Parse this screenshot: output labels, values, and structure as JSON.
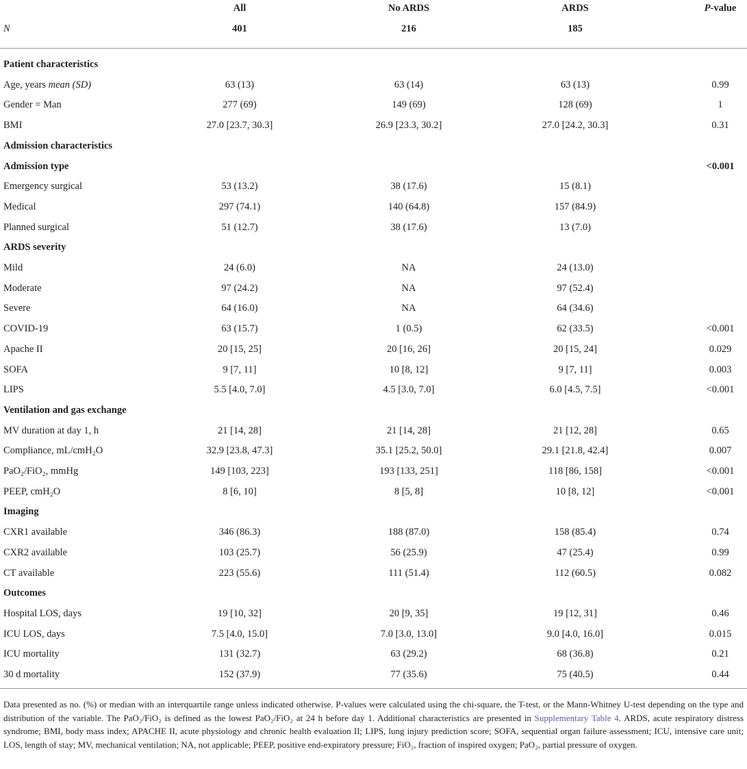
{
  "table": {
    "header": {
      "columns": [
        "All",
        "No ARDS",
        "ARDS"
      ],
      "p_italic": "P",
      "p_rest": "-value",
      "n_label": "N",
      "n_values": [
        401,
        216,
        185
      ]
    },
    "rows": [
      {
        "label": "Patient characteristics",
        "bold": true,
        "values": [
          null,
          null,
          null,
          null
        ]
      },
      {
        "label": "Age, years",
        "label_em": "mean (SD)",
        "values": [
          "63 (13)",
          "63 (14)",
          "63 (13)",
          "0.99"
        ]
      },
      {
        "label": "Gender = Man",
        "values": [
          "277 (69)",
          "149 (69)",
          "128 (69)",
          "1"
        ]
      },
      {
        "label": "BMI",
        "values": [
          "27.0 [23.7, 30.3]",
          "26.9 [23.3, 30.2]",
          "27.0 [24.2, 30.3]",
          "0.31"
        ]
      },
      {
        "label": "Admission characteristics",
        "bold": true,
        "values": [
          null,
          null,
          null,
          null
        ]
      },
      {
        "label": "Admission type",
        "bold": true,
        "values": [
          null,
          null,
          null,
          "<0.001"
        ]
      },
      {
        "label": "Emergency surgical",
        "values": [
          "53 (13.2)",
          "38 (17.6)",
          "15 (8.1)",
          null
        ]
      },
      {
        "label": "Medical",
        "values": [
          "297 (74.1)",
          "140 (64.8)",
          "157 (84.9)",
          null
        ]
      },
      {
        "label": "Planned surgical",
        "values": [
          "51 (12.7)",
          "38 (17.6)",
          "13 (7.0)",
          null
        ]
      },
      {
        "label": "ARDS severity",
        "bold": true,
        "values": [
          null,
          null,
          null,
          null
        ]
      },
      {
        "label": "Mild",
        "values": [
          "24 (6.0)",
          "NA",
          "24 (13.0)",
          null
        ]
      },
      {
        "label": "Moderate",
        "values": [
          "97 (24.2)",
          "NA",
          "97 (52.4)",
          null
        ]
      },
      {
        "label": "Severe",
        "values": [
          "64 (16.0)",
          "NA",
          "64 (34.6)",
          null
        ]
      },
      {
        "label": "COVID-19",
        "values": [
          "63 (15.7)",
          "1 (0.5)",
          "62 (33.5)",
          "<0.001"
        ]
      },
      {
        "label": "Apache II",
        "values": [
          "20 [15, 25]",
          "20 [16, 26]",
          "20 [15, 24]",
          "0.029"
        ]
      },
      {
        "label": "SOFA",
        "values": [
          "9 [7, 11]",
          "10 [8, 12]",
          "9 [7, 11]",
          "0.003"
        ]
      },
      {
        "label": "LIPS",
        "values": [
          "5.5 [4.0, 7.0]",
          "4.5 [3.0, 7.0]",
          "6.0 [4.5, 7.5]",
          "<0.001"
        ]
      },
      {
        "label": "Ventilation and gas exchange",
        "bold": true,
        "values": [
          null,
          null,
          null,
          null
        ]
      },
      {
        "label": "MV duration at day 1, h",
        "values": [
          "21 [14, 28]",
          "21 [14, 28]",
          "21 [12, 28]",
          "0.65"
        ]
      },
      {
        "label": "Compliance, mL/cmH₂O",
        "values": [
          "32.9 [23.8, 47.3]",
          "35.1 [25.2, 50.0]",
          "29.1 [21.8, 42.4]",
          "0.007"
        ]
      },
      {
        "label": "PaO₂/FiO₂, mmHg",
        "values": [
          "149 [103, 223]",
          "193 [133, 251]",
          "118 [86, 158]",
          "<0.001"
        ]
      },
      {
        "label": "PEEP, cmH₂O",
        "values": [
          "8 [6, 10]",
          "8 [5, 8]",
          "10 [8, 12]",
          "<0.001"
        ]
      },
      {
        "label": "Imaging",
        "bold": true,
        "values": [
          null,
          null,
          null,
          null
        ]
      },
      {
        "label": "CXR1 available",
        "values": [
          "346 (86.3)",
          "188 (87.0)",
          "158 (85.4)",
          "0.74"
        ]
      },
      {
        "label": "CXR2 available",
        "values": [
          "103 (25.7)",
          "56 (25.9)",
          "47 (25.4)",
          "0.99"
        ]
      },
      {
        "label": "CT available",
        "values": [
          "223 (55.6)",
          "111 (51.4)",
          "112 (60.5)",
          "0.082"
        ]
      },
      {
        "label": "Outcomes",
        "bold": true,
        "values": [
          null,
          null,
          null,
          null
        ]
      },
      {
        "label": "Hospital LOS, days",
        "values": [
          "19 [10, 32]",
          "20 [9, 35]",
          "19 [12, 31]",
          "0.46"
        ]
      },
      {
        "label": "ICU LOS, days",
        "values": [
          "7.5 [4.0, 15.0]",
          "7.0 [3.0, 13.0]",
          "9.0 [4.0, 16.0]",
          "0.015"
        ]
      },
      {
        "label": "ICU mortality",
        "values": [
          "131 (32.7)",
          "63 (29.2)",
          "68 (36.8)",
          "0.21"
        ]
      },
      {
        "label": "30 d mortality",
        "values": [
          "152 (37.9)",
          "77 (35.6)",
          "75 (40.5)",
          "0.44"
        ]
      }
    ],
    "footnote": {
      "before": "Data presented as no. (%) or median with an interquartile range unless indicated otherwise. P-values were calculated using the chi-square, the T-test, or the Mann-Whitney U-test depending on the type and distribution of the variable. The PaO₂/FiO₂ is defined as the lowest PaO₂/FiO₂ at 24 h before day 1. Additional characteristics are presented in",
      "link": "Supplementary Table 4",
      "after": ". ARDS, acute respiratory distress syndrome; BMI, body mass index; APACHE II, acute physiology and chronic health evaluation II; LIPS, lung injury prediction score; SOFA, sequential organ failure assessment; ICU, intensive care unit; LOS, length of stay; MV, mechanical ventilation; NA, not applicable; PEEP, positive end-expiratory pressure; FiO₂, fraction of inspired oxygen; PaO₂, partial pressure of oxygen."
    }
  }
}
